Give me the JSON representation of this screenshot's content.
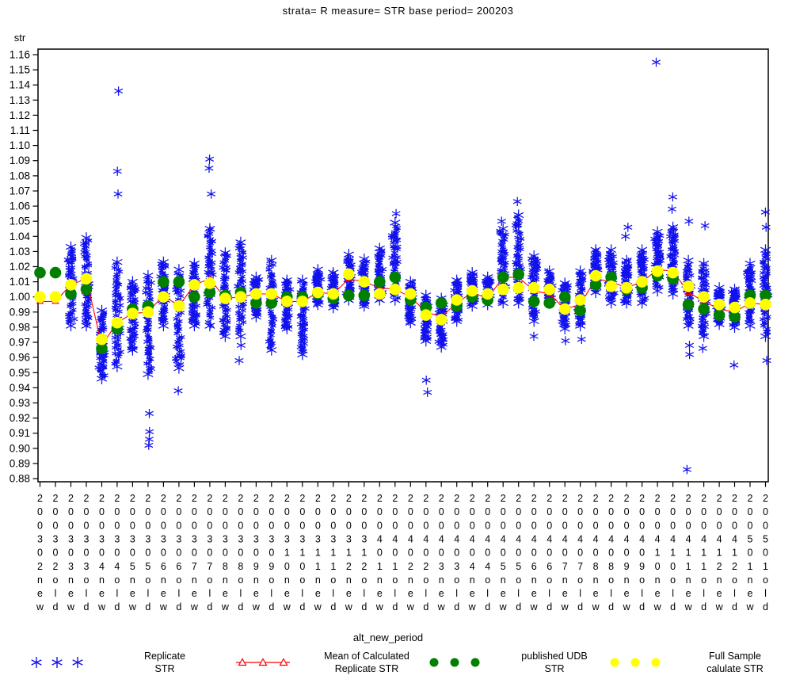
{
  "chart_data": {
    "type": "scatter",
    "title": "strata= R measure= STR base period= 200203",
    "ylabel": "str",
    "xlabel": "alt_new_period",
    "ylim": [
      0.88,
      1.16
    ],
    "ytick_step": 0.01,
    "grid": false,
    "legend_position": "bottom",
    "colors": {
      "replicate": "#1111ee",
      "mean": "#ff0000",
      "published": "#008000",
      "full_sample": "#ffff00",
      "axis": "#000000"
    },
    "categories": [
      "200302new",
      "200302old",
      "200303new",
      "200303old",
      "200304new",
      "200304old",
      "200305new",
      "200305old",
      "200306new",
      "200306old",
      "200307new",
      "200307old",
      "200308new",
      "200308old",
      "200309new",
      "200309old",
      "200310new",
      "200310old",
      "200311new",
      "200311old",
      "200312new",
      "200312old",
      "200401new",
      "200401old",
      "200402new",
      "200402old",
      "200403new",
      "200403old",
      "200404new",
      "200404old",
      "200405new",
      "200405old",
      "200406new",
      "200406old",
      "200407new",
      "200407old",
      "200408new",
      "200408old",
      "200409new",
      "200409old",
      "200410new",
      "200410old",
      "200411new",
      "200411old",
      "200412new",
      "200412old",
      "200501new",
      "200501old"
    ],
    "series": {
      "published": [
        1.016,
        1.016,
        1.002,
        1.005,
        0.966,
        0.979,
        0.992,
        0.994,
        1.01,
        1.01,
        1.0,
        1.003,
        1.001,
        1.003,
        0.996,
        0.996,
        1.0,
        1.0,
        1.002,
        0.999,
        1.001,
        1.001,
        1.01,
        1.013,
        0.998,
        0.993,
        0.996,
        0.994,
        1.0,
        0.998,
        1.013,
        1.015,
        0.997,
        0.996,
        1.0,
        0.991,
        1.008,
        1.013,
        1.005,
        1.006,
        1.014,
        1.012,
        0.995,
        0.992,
        0.988,
        0.987,
        1.001,
        1.001
      ],
      "full_sample": [
        1.0,
        1.0,
        1.008,
        1.012,
        0.972,
        0.983,
        0.989,
        0.99,
        1.0,
        0.994,
        1.008,
        1.009,
        0.999,
        1.0,
        1.002,
        1.002,
        0.997,
        0.997,
        1.003,
        1.002,
        1.015,
        1.01,
        1.002,
        1.005,
        1.002,
        0.988,
        0.985,
        0.998,
        1.004,
        1.002,
        1.005,
        1.006,
        1.006,
        1.005,
        0.992,
        0.998,
        1.014,
        1.007,
        1.006,
        1.01,
        1.017,
        1.016,
        1.007,
        1.0,
        0.995,
        0.993,
        0.996,
        0.995
      ],
      "mean": [
        0.997,
        0.997,
        1.008,
        1.012,
        0.968,
        0.983,
        0.989,
        0.99,
        1.001,
        0.994,
        1.008,
        1.012,
        0.999,
        1.0,
        1.002,
        1.002,
        0.997,
        0.997,
        1.003,
        1.002,
        1.012,
        1.01,
        1.006,
        1.005,
        1.0,
        0.99,
        0.987,
        0.996,
        1.003,
        0.999,
        1.013,
        1.013,
        1.004,
        1.002,
        0.992,
        0.995,
        1.012,
        1.01,
        1.006,
        1.01,
        1.018,
        1.017,
        1.003,
        0.997,
        0.992,
        0.99,
        0.996,
        0.995
      ],
      "replicate_clusters": [
        null,
        null,
        [
          0.982,
          1.032
        ],
        [
          0.982,
          1.038
        ],
        [
          0.947,
          0.99
        ],
        [
          0.955,
          1.022
        ],
        [
          0.966,
          1.009
        ],
        [
          0.95,
          1.013
        ],
        [
          0.982,
          1.022
        ],
        [
          0.954,
          1.017
        ],
        [
          0.982,
          1.021
        ],
        [
          0.982,
          1.044
        ],
        [
          0.975,
          1.028
        ],
        [
          0.975,
          1.035
        ],
        [
          0.988,
          1.012
        ],
        [
          0.966,
          1.023
        ],
        [
          0.98,
          1.01
        ],
        [
          0.963,
          1.01
        ],
        [
          0.996,
          1.017
        ],
        [
          0.994,
          1.015
        ],
        [
          0.999,
          1.027
        ],
        [
          0.995,
          1.024
        ],
        [
          0.999,
          1.031
        ],
        [
          0.999,
          1.048
        ],
        [
          0.984,
          1.009
        ],
        [
          0.972,
          1.0
        ],
        [
          0.968,
          0.998
        ],
        [
          0.985,
          1.01
        ],
        [
          0.995,
          1.015
        ],
        [
          0.996,
          1.012
        ],
        [
          0.997,
          1.044
        ],
        [
          0.997,
          1.053
        ],
        [
          0.985,
          1.026
        ],
        [
          0.997,
          1.016
        ],
        [
          0.98,
          1.008
        ],
        [
          0.982,
          1.016
        ],
        [
          1.004,
          1.03
        ],
        [
          0.997,
          1.03
        ],
        [
          0.997,
          1.023
        ],
        [
          0.997,
          1.03
        ],
        [
          1.005,
          1.042
        ],
        [
          1.003,
          1.045
        ],
        [
          0.982,
          1.023
        ],
        [
          0.975,
          1.021
        ],
        [
          0.983,
          1.005
        ],
        [
          0.981,
          1.004
        ],
        [
          0.982,
          1.021
        ],
        [
          0.975,
          1.03
        ]
      ],
      "replicate_outliers_above": {
        "5": [
          1.136,
          1.083,
          1.068
        ],
        "11": [
          1.091,
          1.085,
          1.068
        ],
        "23": [
          1.055
        ],
        "30": [
          1.05
        ],
        "31": [
          1.063
        ],
        "38": [
          1.046,
          1.04
        ],
        "40": [
          1.155
        ],
        "41": [
          1.066,
          1.058
        ],
        "42": [
          1.05
        ],
        "43": [
          1.047
        ],
        "47": [
          1.056,
          1.046
        ]
      },
      "replicate_outliers_below": {
        "7": [
          0.923,
          0.911,
          0.906,
          0.902
        ],
        "9": [
          0.938
        ],
        "13": [
          0.968,
          0.958
        ],
        "25": [
          0.945,
          0.937
        ],
        "32": [
          0.974
        ],
        "34": [
          0.971
        ],
        "35": [
          0.972
        ],
        "42": [
          0.968,
          0.962,
          0.886
        ],
        "43": [
          0.966
        ],
        "45": [
          0.955
        ],
        "47": [
          0.958
        ]
      }
    },
    "legend": [
      {
        "name": "replicate",
        "line1": "Replicate",
        "line2": "STR",
        "marker": "blue-asterisks"
      },
      {
        "name": "mean",
        "line1": "Mean of Calculated",
        "line2": "Replicate STR",
        "marker": "red-triangle-line"
      },
      {
        "name": "published",
        "line1": "published UDB",
        "line2": "STR",
        "marker": "green-dots"
      },
      {
        "name": "full_sample",
        "line1": "Full Sample",
        "line2": "calulate STR",
        "marker": "yellow-dots"
      }
    ]
  }
}
